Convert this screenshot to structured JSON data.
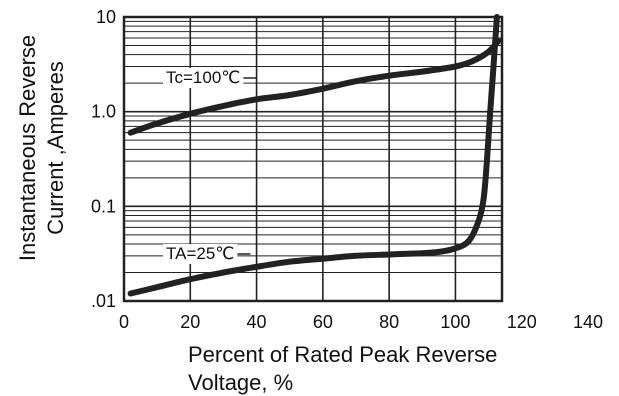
{
  "chart_data": {
    "type": "line",
    "title": "",
    "xlabel_line1": "Percent of Rated Peak Reverse",
    "xlabel_line2": "Voltage, %",
    "ylabel_line1": "Instantaneous Reverse",
    "ylabel_line2": "Current ,Amperes",
    "xlim": [
      0,
      140
    ],
    "ylim": [
      0.01,
      10
    ],
    "yscale": "log",
    "grid": true,
    "x_ticks": [
      0,
      20,
      40,
      60,
      80,
      100,
      120,
      140
    ],
    "x_tick_labels": [
      "0",
      "20",
      "40",
      "60",
      "80",
      "100",
      "120",
      "140"
    ],
    "y_ticks": [
      0.01,
      0.1,
      1.0,
      10
    ],
    "y_tick_labels": [
      ".01",
      "0.1",
      "1.0",
      "10"
    ],
    "series": [
      {
        "name": "Tc=100℃",
        "x": [
          2,
          10,
          20,
          30,
          40,
          50,
          60,
          70,
          80,
          90,
          100,
          105,
          110,
          113
        ],
        "y": [
          0.6,
          0.75,
          0.95,
          1.15,
          1.35,
          1.5,
          1.75,
          2.1,
          2.4,
          2.65,
          3.0,
          3.4,
          4.3,
          5.6
        ]
      },
      {
        "name": "TA=25℃",
        "x": [
          2,
          10,
          20,
          30,
          40,
          50,
          60,
          70,
          80,
          90,
          95,
          100,
          104,
          107,
          108.5,
          109.5,
          110.5,
          111.5,
          112.5
        ],
        "y": [
          0.012,
          0.014,
          0.017,
          0.02,
          0.023,
          0.026,
          0.028,
          0.03,
          0.031,
          0.032,
          0.033,
          0.036,
          0.043,
          0.07,
          0.12,
          0.3,
          1.0,
          3.0,
          10
        ]
      }
    ]
  }
}
